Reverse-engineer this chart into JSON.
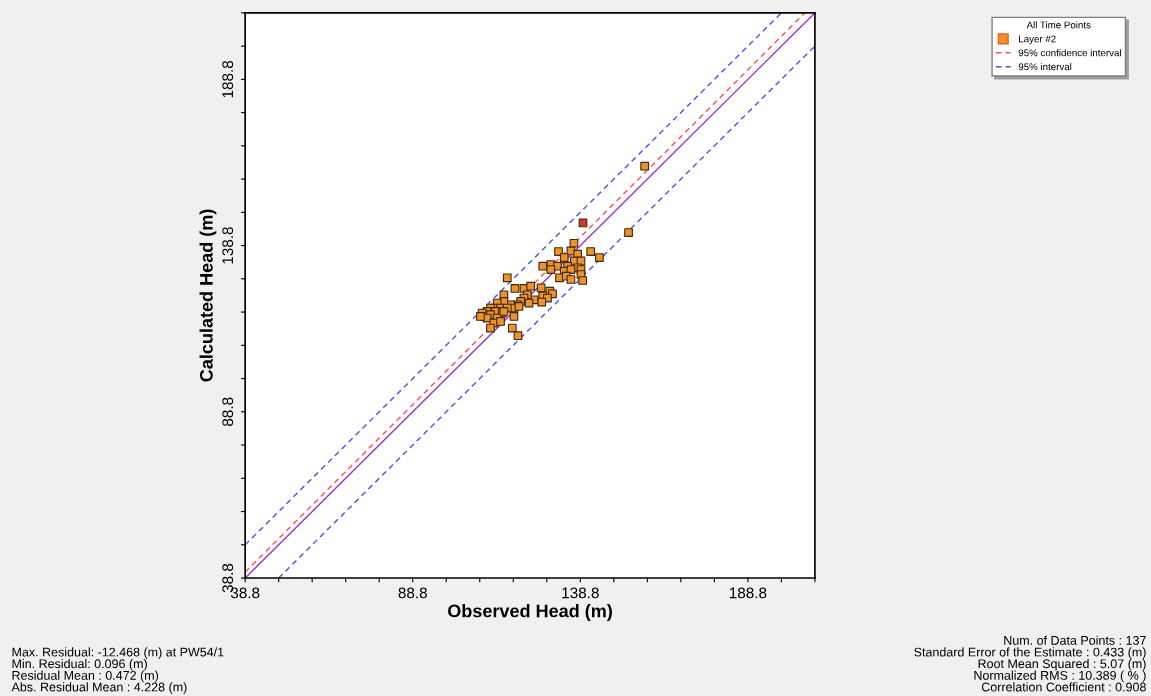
{
  "chart_data": {
    "type": "scatter",
    "xlabel": "Observed Head (m)",
    "ylabel": "Calculated Head (m)",
    "legend_title": "All Time Points",
    "legend": "top right",
    "marker": "square",
    "grid": false,
    "xlim": [
      38.8,
      208.8
    ],
    "ylim": [
      38.8,
      208.8
    ],
    "xticks": [
      38.8,
      {
        "value": 48.8,
        "label": null
      },
      {
        "value": 58.8,
        "label": null
      },
      {
        "value": 68.8,
        "label": null
      },
      {
        "value": 78.8,
        "label": null
      },
      88.8,
      {
        "value": 98.8,
        "label": null
      },
      {
        "value": 108.8,
        "label": null
      },
      {
        "value": 118.8,
        "label": null
      },
      {
        "value": 128.8,
        "label": null
      },
      138.8,
      {
        "value": 148.8,
        "label": null
      },
      {
        "value": 158.8,
        "label": null
      },
      {
        "value": 168.8,
        "label": null
      },
      {
        "value": 178.8,
        "label": null
      },
      188.8,
      {
        "value": 198.8,
        "label": null
      },
      {
        "value": 208.8,
        "label": null
      }
    ],
    "yticks": [
      38.8,
      {
        "value": 48.8,
        "label": null
      },
      {
        "value": 58.8,
        "label": null
      },
      {
        "value": 68.8,
        "label": null
      },
      {
        "value": 78.8,
        "label": null
      },
      88.8,
      {
        "value": 98.8,
        "label": null
      },
      {
        "value": 108.8,
        "label": null
      },
      {
        "value": 118.8,
        "label": null
      },
      {
        "value": 128.8,
        "label": null
      },
      138.8,
      {
        "value": 148.8,
        "label": null
      },
      {
        "value": 158.8,
        "label": null
      },
      {
        "value": 168.8,
        "label": null
      },
      {
        "value": 178.8,
        "label": null
      },
      188.8,
      {
        "value": 198.8,
        "label": null
      },
      {
        "value": 208.8,
        "label": null
      }
    ],
    "series": [
      {
        "type": "line",
        "color": "#9b30d0",
        "line_style": "solid",
        "marker": "none",
        "x": [
          38.8,
          208.8
        ],
        "values": [
          38.8,
          208.8
        ]
      },
      {
        "type": "line",
        "name": "95% confidence interval",
        "color": "#ff5050",
        "line_style": "dashed",
        "marker": "none",
        "x": [
          38.8,
          205.8
        ],
        "values": [
          40.6,
          208.8
        ]
      },
      {
        "type": "line",
        "name": "95% interval",
        "color": "#5050e0",
        "line_style": "dashed",
        "marker": "none",
        "x": [
          38.8,
          198.8,
          null,
          48.8,
          208.8
        ],
        "values": [
          48.8,
          208.8,
          null,
          38.8,
          198.8
        ]
      },
      {
        "name": "Layer #2",
        "color": "#f0922a",
        "x": [
          158.0,
          139.6,
          153.2,
          136.9,
          141.9,
          144.5,
          132.3,
          136.0,
          138.0,
          134.0,
          137.0,
          139.0,
          130.0,
          127.6,
          132.0,
          135.0,
          138.0,
          139.0,
          130.0,
          134.0,
          136.0,
          139.0,
          132.6,
          134.6,
          136.0,
          139.5,
          117.0,
          119.3,
          122.0,
          124.0,
          127.1,
          129.7,
          130.5,
          127.6,
          129.0,
          125.0,
          123.0,
          122.0,
          123.5,
          127.3,
          121.0,
          120.0,
          118.0,
          119.0,
          120.5,
          116.0,
          116.0,
          114.0,
          113.0,
          115.0,
          117.0,
          112.0,
          111.0,
          113.5,
          115.5,
          109.5,
          110.0,
          112.0,
          114.0,
          111.0,
          113.0,
          115.0,
          119.0,
          112.0,
          118.5,
          120.2,
          109.0,
          116.0
        ],
        "values": [
          162.7,
          145.6,
          142.7,
          139.5,
          137.0,
          135.2,
          137.0,
          137.2,
          136.2,
          135.2,
          134.2,
          134.2,
          133.1,
          132.6,
          132.6,
          132.6,
          132.1,
          131.6,
          131.6,
          131.1,
          131.6,
          130.1,
          129.1,
          129.6,
          128.6,
          128.3,
          129.1,
          125.9,
          125.9,
          126.6,
          126.1,
          125.1,
          124.3,
          123.6,
          123.0,
          122.5,
          124.0,
          123.0,
          121.5,
          121.8,
          122.0,
          121.0,
          121.0,
          120.0,
          120.5,
          124.0,
          122.0,
          121.5,
          120.0,
          120.0,
          120.0,
          120.0,
          119.0,
          119.0,
          118.5,
          118.5,
          117.5,
          118.0,
          117.0,
          117.0,
          115.5,
          116.0,
          117.5,
          114.0,
          114.0,
          111.7,
          117.5,
          119.0
        ],
        "colors": [
          "#f0922a",
          "#e0302a",
          "#f0922a",
          "#f0922a",
          "#f0922a",
          "#f0922a",
          "#f0922a",
          "#f0922a",
          "#f0922a",
          "#f0922a",
          "#f0922a",
          "#f0922a",
          "#f0922a",
          "#f0922a",
          "#f0922a",
          "#f0922a",
          "#f0922a",
          "#f0922a",
          "#f0922a",
          "#f0922a",
          "#f0922a",
          "#f0922a",
          "#f0922a",
          "#f0922a",
          "#f0922a",
          "#f0922a",
          "#f0922a",
          "#f0922a",
          "#f0922a",
          "#f0922a",
          "#f0922a",
          "#f0922a",
          "#f0922a",
          "#f0922a",
          "#f0922a",
          "#f0922a",
          "#f0922a",
          "#f0922a",
          "#f0922a",
          "#f0922a",
          "#f0922a",
          "#f0922a",
          "#f0922a",
          "#f0922a",
          "#f0922a",
          "#f0922a",
          "#f0922a",
          "#f0922a",
          "#f0922a",
          "#f0922a",
          "#f0922a",
          "#f0922a",
          "#f0922a",
          "#f0922a",
          "#f0922a",
          "#f0922a",
          "#f0922a",
          "#f0922a",
          "#f0922a",
          "#f0922a",
          "#f0922a",
          "#f0922a",
          "#f0922a",
          "#f0922a",
          "#f0922a",
          "#f0922a",
          "#f0922a",
          "#f0922a"
        ]
      }
    ],
    "annotations": [
      "Max. Residual: -12.468 (m) at PW54/1\nMin. Residual: 0.096 (m)\nResidual Mean : 0.472 (m)\nAbs. Residual Mean : 4.228 (m)",
      "Num. of Data Points : 137\nStandard Error of the Estimate : 0.433 (m)\nRoot Mean Squared : 5.07 (m)\nNormalized RMS : 10.389 ( % )\nCorrelation Coefficient : 0.908"
    ]
  }
}
